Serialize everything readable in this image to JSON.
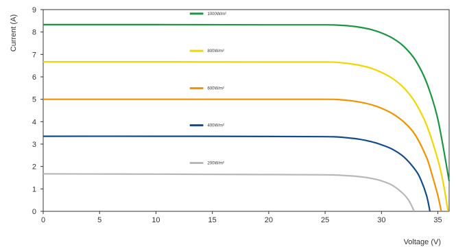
{
  "chart_data": {
    "type": "line",
    "xlabel": "Voltage (V)",
    "ylabel": "Current (A)",
    "xlim": [
      0,
      36
    ],
    "ylim": [
      0,
      9
    ],
    "x_ticks": [
      0,
      5,
      10,
      15,
      20,
      25,
      30,
      35
    ],
    "y_ticks": [
      0,
      1,
      2,
      3,
      4,
      5,
      6,
      7,
      8,
      9
    ],
    "grid": false,
    "series": [
      {
        "name": "1000W/m²",
        "color": "#1a9641",
        "x": [
          0,
          10,
          20,
          25,
          26,
          27,
          28,
          29,
          30,
          31,
          32,
          33,
          34,
          35,
          36
        ],
        "y": [
          8.33,
          8.33,
          8.32,
          8.32,
          8.31,
          8.28,
          8.22,
          8.12,
          7.96,
          7.72,
          7.35,
          6.75,
          5.75,
          4.1,
          1.35
        ]
      },
      {
        "name": "800W/m²",
        "color": "#f2d600",
        "x": [
          0,
          10,
          20,
          25,
          26,
          27,
          28,
          29,
          30,
          31,
          32,
          33,
          34,
          35,
          35.5,
          35.9
        ],
        "y": [
          6.67,
          6.67,
          6.66,
          6.66,
          6.65,
          6.6,
          6.52,
          6.4,
          6.2,
          5.92,
          5.5,
          4.85,
          3.85,
          2.3,
          1.2,
          0
        ]
      },
      {
        "name": "600W/m²",
        "color": "#f39200",
        "x": [
          0,
          10,
          20,
          25,
          26,
          27,
          28,
          29,
          30,
          31,
          32,
          33,
          34,
          34.5,
          35.0,
          35.3
        ],
        "y": [
          5.0,
          5.0,
          5.0,
          5.0,
          4.99,
          4.95,
          4.88,
          4.77,
          4.6,
          4.35,
          3.98,
          3.4,
          2.4,
          1.6,
          0.7,
          0
        ]
      },
      {
        "name": "400W/m²",
        "color": "#0f4c8f",
        "x": [
          0,
          10,
          20,
          25,
          26,
          27,
          28,
          29,
          30,
          31,
          32,
          33,
          33.5,
          34.0,
          34.3
        ],
        "y": [
          3.35,
          3.35,
          3.34,
          3.33,
          3.32,
          3.28,
          3.22,
          3.12,
          2.97,
          2.76,
          2.42,
          1.85,
          1.4,
          0.7,
          0
        ]
      },
      {
        "name": "200W/m²",
        "color": "#b8b8b8",
        "x": [
          0,
          10,
          20,
          25,
          26,
          27,
          28,
          29,
          30,
          31,
          32,
          32.5,
          32.9
        ],
        "y": [
          1.67,
          1.66,
          1.64,
          1.63,
          1.62,
          1.59,
          1.55,
          1.48,
          1.36,
          1.15,
          0.75,
          0.42,
          0
        ]
      }
    ]
  }
}
